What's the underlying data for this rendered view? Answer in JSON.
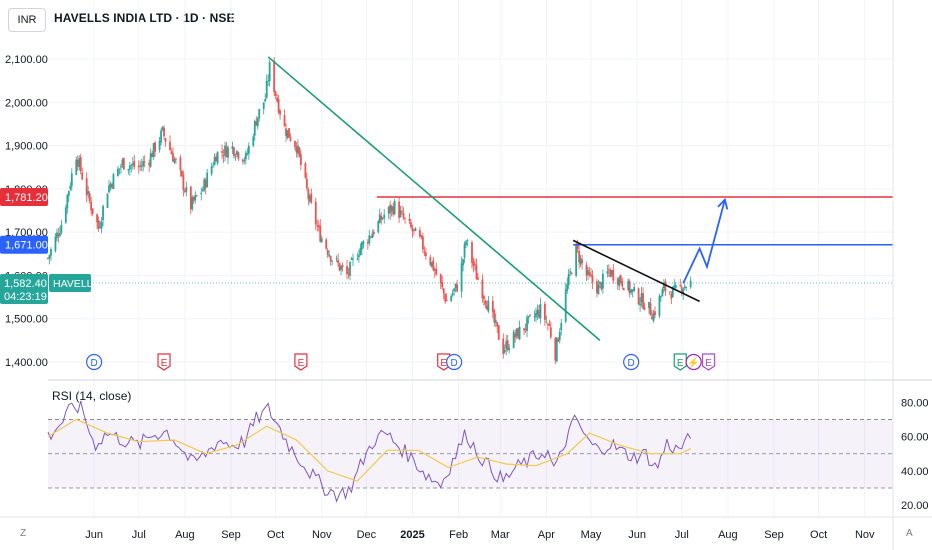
{
  "header": {
    "currency": "INR",
    "title": "HAVELLS INDIA LTD · 1D · NSE"
  },
  "footer": {
    "z_label": "Z",
    "a_label": "A"
  },
  "colors": {
    "up": "#26a69a",
    "down": "#ef5350",
    "trend_down": "#1a9e72",
    "resistance": "#e5303c",
    "target_line": "#2962ff",
    "projection": "#2962ff",
    "rsi_line": "#7e57c2",
    "rsi_ma": "#f2c94c"
  },
  "chart_data": [
    {
      "type": "candlestick",
      "title": "HAVELLS INDIA LTD · 1D · NSE",
      "currency": "INR",
      "xlim": [
        "2024-05-01",
        "2025-11-20"
      ],
      "ylim": [
        1370,
        2160
      ],
      "y_ticks": [
        1400,
        1500,
        1600,
        1700,
        1800,
        1900,
        2000,
        2100
      ],
      "y_tick_labels": [
        "1,400.00",
        "1,500.00",
        "1,600.00",
        "1,700.00",
        "1,800.00",
        "1,900.00",
        "2,000.00",
        "2,100.00"
      ],
      "x_ticks": [
        {
          "date": "2024-06-01",
          "label": "Jun"
        },
        {
          "date": "2024-07-01",
          "label": "Jul"
        },
        {
          "date": "2024-08-01",
          "label": "Aug"
        },
        {
          "date": "2024-09-01",
          "label": "Sep"
        },
        {
          "date": "2024-10-01",
          "label": "Oct"
        },
        {
          "date": "2024-11-01",
          "label": "Nov"
        },
        {
          "date": "2024-12-01",
          "label": "Dec"
        },
        {
          "date": "2025-01-01",
          "label": "2025"
        },
        {
          "date": "2025-02-01",
          "label": "Feb"
        },
        {
          "date": "2025-03-01",
          "label": "Mar"
        },
        {
          "date": "2025-04-01",
          "label": "Apr"
        },
        {
          "date": "2025-05-01",
          "label": "May"
        },
        {
          "date": "2025-06-01",
          "label": "Jun"
        },
        {
          "date": "2025-07-01",
          "label": "Jul"
        },
        {
          "date": "2025-08-01",
          "label": "Aug"
        },
        {
          "date": "2025-09-01",
          "label": "Sep"
        },
        {
          "date": "2025-10-01",
          "label": "Oct"
        },
        {
          "date": "2025-11-01",
          "label": "Nov"
        }
      ],
      "price_path": [
        [
          "2024-05-01",
          1640
        ],
        [
          "2024-05-10",
          1720
        ],
        [
          "2024-05-20",
          1880
        ],
        [
          "2024-05-28",
          1780
        ],
        [
          "2024-06-04",
          1710
        ],
        [
          "2024-06-10",
          1800
        ],
        [
          "2024-06-20",
          1860
        ],
        [
          "2024-07-01",
          1850
        ],
        [
          "2024-07-08",
          1870
        ],
        [
          "2024-07-17",
          1930
        ],
        [
          "2024-07-26",
          1860
        ],
        [
          "2024-08-05",
          1760
        ],
        [
          "2024-08-13",
          1800
        ],
        [
          "2024-08-22",
          1880
        ],
        [
          "2024-09-02",
          1895
        ],
        [
          "2024-09-11",
          1870
        ],
        [
          "2024-09-18",
          1960
        ],
        [
          "2024-09-24",
          2010
        ],
        [
          "2024-09-27",
          2080
        ],
        [
          "2024-10-01",
          2020
        ],
        [
          "2024-10-07",
          1940
        ],
        [
          "2024-10-15",
          1900
        ],
        [
          "2024-10-23",
          1780
        ],
        [
          "2024-10-30",
          1700
        ],
        [
          "2024-11-08",
          1640
        ],
        [
          "2024-11-18",
          1600
        ],
        [
          "2024-11-26",
          1660
        ],
        [
          "2024-12-05",
          1700
        ],
        [
          "2024-12-13",
          1740
        ],
        [
          "2024-12-20",
          1760
        ],
        [
          "2024-12-28",
          1720
        ],
        [
          "2025-01-06",
          1680
        ],
        [
          "2025-01-15",
          1620
        ],
        [
          "2025-01-24",
          1540
        ],
        [
          "2025-02-01",
          1580
        ],
        [
          "2025-02-06",
          1680
        ],
        [
          "2025-02-13",
          1600
        ],
        [
          "2025-02-22",
          1520
        ],
        [
          "2025-03-03",
          1430
        ],
        [
          "2025-03-11",
          1460
        ],
        [
          "2025-03-20",
          1490
        ],
        [
          "2025-03-28",
          1520
        ],
        [
          "2025-04-03",
          1480
        ],
        [
          "2025-04-07",
          1420
        ],
        [
          "2025-04-14",
          1560
        ],
        [
          "2025-04-21",
          1660
        ],
        [
          "2025-04-28",
          1600
        ],
        [
          "2025-05-06",
          1570
        ],
        [
          "2025-05-13",
          1610
        ],
        [
          "2025-05-21",
          1590
        ],
        [
          "2025-05-29",
          1560
        ],
        [
          "2025-06-05",
          1540
        ],
        [
          "2025-06-12",
          1510
        ],
        [
          "2025-06-19",
          1570
        ],
        [
          "2025-06-26",
          1560
        ],
        [
          "2025-07-01",
          1575
        ],
        [
          "2025-07-07",
          1582.4
        ]
      ],
      "horizontal_lines": [
        {
          "price": 1781.2,
          "label": "1,781.20",
          "from": "2024-12-08",
          "style": "resistance"
        },
        {
          "price": 1671.0,
          "label": "1,671.00",
          "from": "2025-04-19",
          "style": "target"
        }
      ],
      "last_price": {
        "value": 1582.4,
        "label": "1,582.40",
        "symbol": "HAVELLS",
        "countdown": "04:23:19"
      },
      "trendlines": [
        {
          "name": "downtrend",
          "from": [
            "2024-09-26",
            2105
          ],
          "to": [
            "2025-05-07",
            1450
          ]
        },
        {
          "name": "wedge-top",
          "from": [
            "2025-04-19",
            1681
          ],
          "to": [
            "2025-07-13",
            1540
          ]
        }
      ],
      "projection_path": [
        [
          "2025-07-02",
          1582
        ],
        [
          "2025-07-13",
          1662
        ],
        [
          "2025-07-18",
          1620
        ],
        [
          "2025-07-30",
          1775
        ]
      ],
      "event_markers": [
        {
          "date": "2024-06-01",
          "label": "D",
          "kind": "dividend"
        },
        {
          "date": "2024-07-18",
          "label": "E",
          "kind": "earnings-red"
        },
        {
          "date": "2024-10-18",
          "label": "E",
          "kind": "earnings-red"
        },
        {
          "date": "2025-01-22",
          "label": "E",
          "kind": "earnings-red"
        },
        {
          "date": "2025-01-29",
          "label": "D",
          "kind": "dividend"
        },
        {
          "date": "2025-05-28",
          "label": "D",
          "kind": "dividend"
        },
        {
          "date": "2025-06-30",
          "label": "E",
          "kind": "earnings-green"
        },
        {
          "date": "2025-07-09",
          "label": "⚡",
          "kind": "split"
        },
        {
          "date": "2025-07-19",
          "label": "E",
          "kind": "earnings-violet"
        }
      ]
    },
    {
      "type": "line",
      "title": "RSI (14, close)",
      "ylim": [
        16,
        86
      ],
      "y_ticks": [
        20,
        40,
        60,
        80
      ],
      "y_tick_labels": [
        "20.00",
        "40.00",
        "60.00",
        "80.00"
      ],
      "bands": [
        30,
        50,
        70
      ],
      "series": [
        {
          "name": "RSI",
          "points": [
            [
              "2024-05-01",
              60
            ],
            [
              "2024-05-10",
              68
            ],
            [
              "2024-05-18",
              78
            ],
            [
              "2024-05-24",
              76
            ],
            [
              "2024-06-01",
              55
            ],
            [
              "2024-06-10",
              62
            ],
            [
              "2024-06-20",
              58
            ],
            [
              "2024-07-01",
              55
            ],
            [
              "2024-07-10",
              61
            ],
            [
              "2024-07-20",
              63
            ],
            [
              "2024-07-28",
              55
            ],
            [
              "2024-08-06",
              44
            ],
            [
              "2024-08-15",
              50
            ],
            [
              "2024-08-24",
              58
            ],
            [
              "2024-09-02",
              55
            ],
            [
              "2024-09-10",
              57
            ],
            [
              "2024-09-18",
              70
            ],
            [
              "2024-09-26",
              76
            ],
            [
              "2024-10-03",
              66
            ],
            [
              "2024-10-10",
              55
            ],
            [
              "2024-10-18",
              46
            ],
            [
              "2024-10-25",
              38
            ],
            [
              "2024-11-03",
              30
            ],
            [
              "2024-11-12",
              26
            ],
            [
              "2024-11-20",
              29
            ],
            [
              "2024-11-28",
              45
            ],
            [
              "2024-12-06",
              58
            ],
            [
              "2024-12-14",
              62
            ],
            [
              "2024-12-22",
              55
            ],
            [
              "2025-01-01",
              47
            ],
            [
              "2025-01-10",
              38
            ],
            [
              "2025-01-20",
              32
            ],
            [
              "2025-01-28",
              46
            ],
            [
              "2025-02-06",
              62
            ],
            [
              "2025-02-14",
              50
            ],
            [
              "2025-02-22",
              42
            ],
            [
              "2025-03-03",
              34
            ],
            [
              "2025-03-12",
              42
            ],
            [
              "2025-03-22",
              47
            ],
            [
              "2025-04-01",
              52
            ],
            [
              "2025-04-07",
              40
            ],
            [
              "2025-04-14",
              58
            ],
            [
              "2025-04-21",
              71
            ],
            [
              "2025-04-28",
              58
            ],
            [
              "2025-05-06",
              52
            ],
            [
              "2025-05-14",
              56
            ],
            [
              "2025-05-22",
              51
            ],
            [
              "2025-05-30",
              48
            ],
            [
              "2025-06-07",
              50
            ],
            [
              "2025-06-14",
              41
            ],
            [
              "2025-06-21",
              56
            ],
            [
              "2025-06-28",
              52
            ],
            [
              "2025-07-07",
              59
            ]
          ]
        },
        {
          "name": "RSI-based MA",
          "points": [
            [
              "2024-05-01",
              60
            ],
            [
              "2024-05-20",
              70
            ],
            [
              "2024-06-10",
              62
            ],
            [
              "2024-07-01",
              57
            ],
            [
              "2024-07-25",
              58
            ],
            [
              "2024-08-15",
              50
            ],
            [
              "2024-09-05",
              55
            ],
            [
              "2024-09-25",
              66
            ],
            [
              "2024-10-15",
              58
            ],
            [
              "2024-11-05",
              40
            ],
            [
              "2024-11-25",
              34
            ],
            [
              "2024-12-15",
              52
            ],
            [
              "2025-01-05",
              52
            ],
            [
              "2025-01-25",
              42
            ],
            [
              "2025-02-14",
              48
            ],
            [
              "2025-03-05",
              44
            ],
            [
              "2025-03-25",
              43
            ],
            [
              "2025-04-15",
              50
            ],
            [
              "2025-04-30",
              62
            ],
            [
              "2025-05-20",
              55
            ],
            [
              "2025-06-10",
              50
            ],
            [
              "2025-06-30",
              50
            ],
            [
              "2025-07-07",
              53
            ]
          ]
        }
      ]
    }
  ]
}
